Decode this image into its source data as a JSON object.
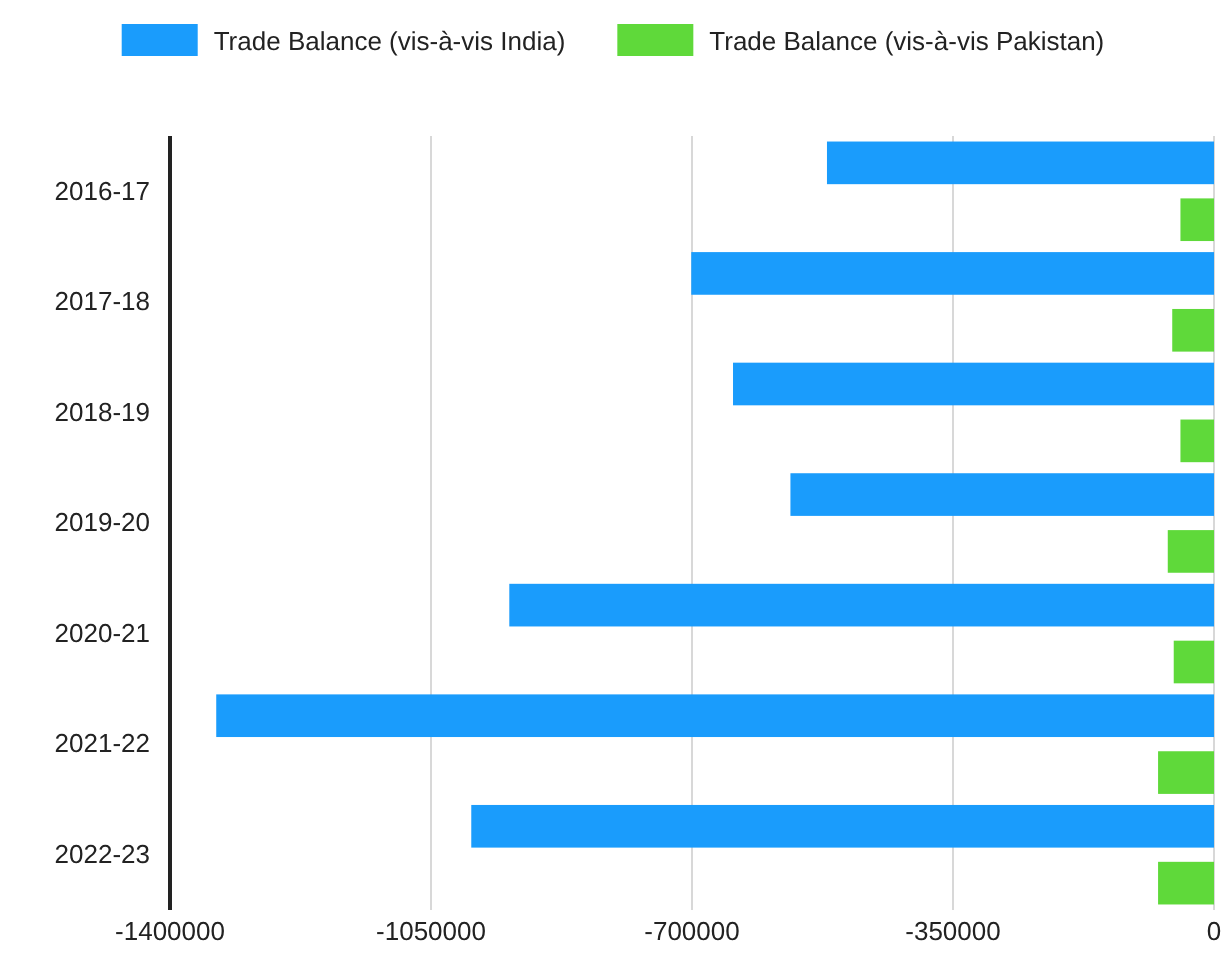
{
  "chart_data": {
    "type": "bar",
    "orientation": "horizontal",
    "categories": [
      "2016-17",
      "2017-18",
      "2018-19",
      "2019-20",
      "2020-21",
      "2021-22",
      "2022-23"
    ],
    "series": [
      {
        "name": "Trade Balance (vis-à-vis India)",
        "color": "#1a9cfc",
        "values": [
          -519000,
          -701000,
          -645000,
          -568000,
          -945000,
          -1338000,
          -996000
        ]
      },
      {
        "name": "Trade Balance (vis-à-vis Pakistan)",
        "color": "#5fd93a",
        "values": [
          -45000,
          -56000,
          -45000,
          -62000,
          -54000,
          -75000,
          -75000
        ]
      }
    ],
    "xlim": [
      -1400000,
      0
    ],
    "xticks": [
      -1400000,
      -1050000,
      -700000,
      -350000,
      0
    ],
    "grid": "x",
    "legend": "top"
  }
}
